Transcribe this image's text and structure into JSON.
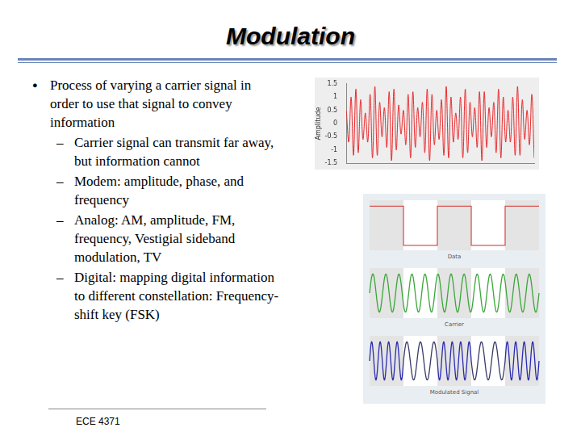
{
  "header": {
    "title": "Modulation"
  },
  "bullets": [
    {
      "text": "Process of varying a carrier signal in order to use that signal to convey information",
      "sub": [
        "Carrier signal can transmit far away, but information cannot",
        "Modem: amplitude, phase, and frequency",
        "Analog: AM, amplitude, FM, frequency, Vestigial sideband modulation, TV",
        "Digital: mapping digital information to different constellation: Frequency-shift key (FSK)"
      ]
    }
  ],
  "chart_data": {
    "type": "line",
    "ylabel": "Amplitude",
    "color": "#e8272a",
    "values": [
      0.5,
      -0.7,
      1.0,
      -1.2,
      1.3,
      -1.1,
      0.9,
      -0.6,
      0.4,
      -0.7,
      1.1,
      -1.3,
      1.4,
      -1.2,
      0.8,
      -0.5,
      0.6,
      -0.9,
      1.2,
      -1.4,
      1.3,
      -1.0,
      0.7,
      -0.4,
      0.5,
      -0.8,
      1.1,
      -1.3,
      1.2,
      -0.9,
      0.6,
      -0.5,
      0.8,
      -1.1,
      1.3,
      -1.4,
      1.1,
      -0.8,
      0.5,
      -0.6,
      0.9,
      -1.2,
      1.4,
      -1.3,
      1.0,
      -0.7,
      0.4,
      -0.6,
      1.0,
      -1.3,
      1.3,
      -1.1,
      0.8,
      -0.5,
      0.6,
      -0.9,
      1.2,
      -1.4,
      1.2,
      -0.9,
      0.6,
      -0.5,
      0.8,
      -1.1,
      1.3,
      -1.3,
      1.0,
      -0.7,
      0.5,
      -0.7,
      1.0,
      -1.2,
      1.4,
      -1.2,
      0.9,
      -0.6,
      0.5,
      -0.8,
      1.1,
      -1.3
    ],
    "ylim": [
      -1.5,
      1.5
    ],
    "yticks": [
      -1.5,
      -1,
      -0.5,
      0,
      0.5,
      1,
      1.5
    ],
    "tick_labels": "y",
    "grid": false
  },
  "diagram": {
    "panels": [
      {
        "label": "Data",
        "bits": [
          1,
          0,
          1,
          0,
          1
        ],
        "color": "#d9534f"
      },
      {
        "label": "Carrier",
        "color": "#3aa63a"
      },
      {
        "label": "Modulated Signal",
        "colors": [
          "#2b2bb0",
          "#3a3a6a"
        ]
      }
    ]
  },
  "footer": "ECE 4371"
}
